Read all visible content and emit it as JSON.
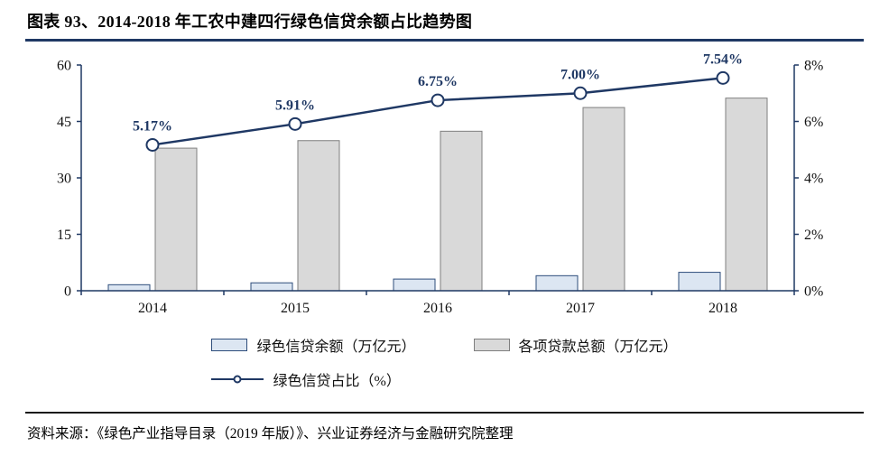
{
  "title": "图表 93、2014-2018 年工农中建四行绿色信贷余额占比趋势图",
  "source": "资料来源：《绿色产业指导目录（2019 年版）》、兴业证券经济与金融研究院整理",
  "colors": {
    "navy": "#1f3864",
    "axis": "#1f3864",
    "tick_text": "#111111"
  },
  "chart_data": {
    "type": "bar",
    "subtype": "combo-bar-line",
    "categories": [
      "2014",
      "2015",
      "2016",
      "2017",
      "2018"
    ],
    "bar_series": [
      {
        "name": "绿色信贷余额（万亿元）",
        "values": [
          1.6,
          2.1,
          3.1,
          4.0,
          4.9
        ],
        "fill": "#dce6f2",
        "stroke": "#2e4d7b"
      },
      {
        "name": "各项贷款总额（万亿元）",
        "values": [
          37.9,
          39.9,
          42.4,
          48.7,
          51.2
        ],
        "fill": "#d9d9d9",
        "stroke": "#7f7f7f"
      }
    ],
    "line_series": {
      "name": "绿色信贷占比（%）",
      "values": [
        5.17,
        5.91,
        6.75,
        7.0,
        7.54
      ],
      "labels": [
        "5.17%",
        "5.91%",
        "6.75%",
        "7.00%",
        "7.54%"
      ],
      "color": "#1f3864"
    },
    "left_axis": {
      "min": 0,
      "max": 60,
      "ticks": [
        0,
        15,
        30,
        45,
        60
      ]
    },
    "right_axis": {
      "min": 0,
      "max": 8,
      "tick_values": [
        0,
        2,
        4,
        6,
        8
      ],
      "tick_labels": [
        "0%",
        "2%",
        "4%",
        "6%",
        "8%"
      ]
    },
    "grid": false,
    "legend_position": "bottom"
  }
}
